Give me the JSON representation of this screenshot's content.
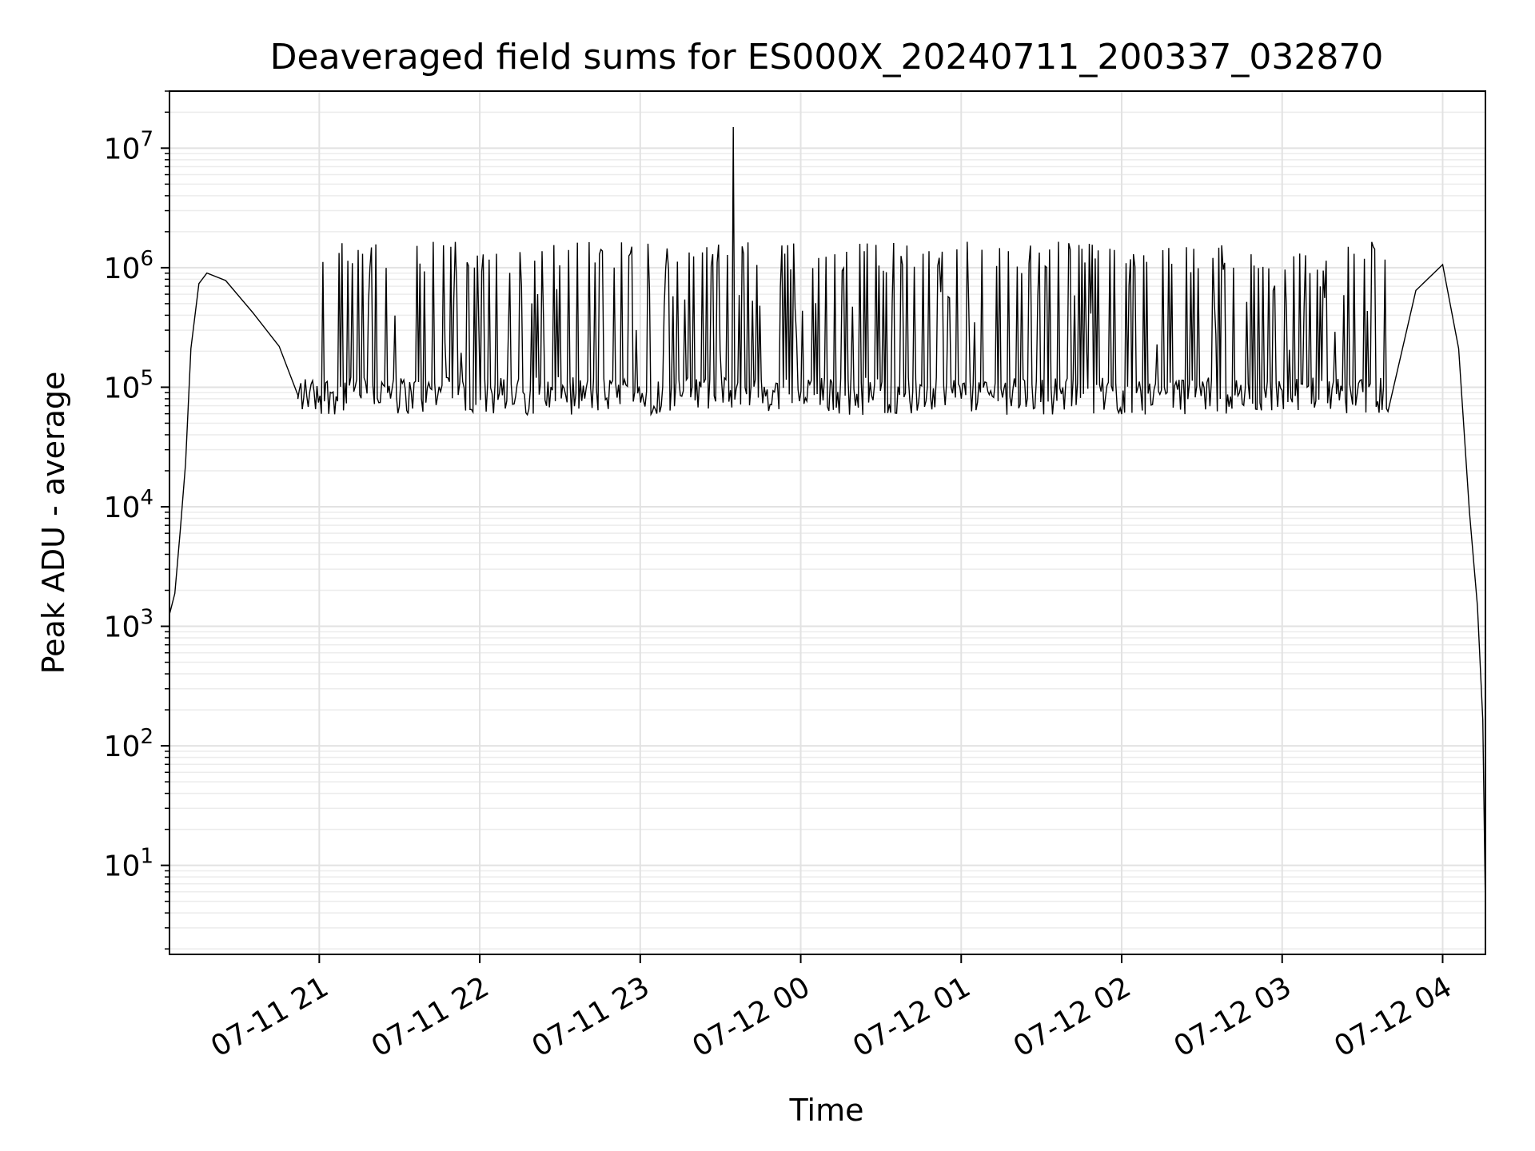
{
  "chart_data": {
    "type": "line",
    "title": "Deaveraged field sums for ES000X_20240711_200337_032870",
    "xlabel": "Time",
    "ylabel": "Peak ADU - average",
    "x_range": [
      "2024-07-11 20:04",
      "2024-07-12 04:16"
    ],
    "ylim": [
      1.8,
      30000000
    ],
    "yscale": "log",
    "grid": true,
    "legend": "none",
    "x_ticks": [
      "07-11 21",
      "07-11 22",
      "07-11 23",
      "07-12 00",
      "07-12 01",
      "07-12 02",
      "07-12 03",
      "07-12 04"
    ],
    "y_ticks": [
      {
        "base": "10",
        "exp": "1"
      },
      {
        "base": "10",
        "exp": "2"
      },
      {
        "base": "10",
        "exp": "3"
      },
      {
        "base": "10",
        "exp": "4"
      },
      {
        "base": "10",
        "exp": "5"
      },
      {
        "base": "10",
        "exp": "6"
      },
      {
        "base": "10",
        "exp": "7"
      }
    ],
    "series": [
      {
        "color": "#000000",
        "description_points": [
          {
            "x": "2024-07-11 20:04",
            "y": 1200
          },
          {
            "x": "2024-07-11 20:06",
            "y": 2000
          },
          {
            "x": "2024-07-11 20:08",
            "y": 6000
          },
          {
            "x": "2024-07-11 20:10",
            "y": 20000
          },
          {
            "x": "2024-07-11 20:12",
            "y": 200000
          },
          {
            "x": "2024-07-11 20:15",
            "y": 700000
          },
          {
            "x": "2024-07-11 20:18",
            "y": 1000000
          },
          {
            "x": "2024-07-11 20:25",
            "y": 700000
          },
          {
            "x": "2024-07-11 20:35",
            "y": 400000
          },
          {
            "x": "2024-07-11 20:45",
            "y": 200000
          },
          {
            "x": "2024-07-11 20:52",
            "y": 80000
          },
          {
            "x": "2024-07-11 23:35",
            "y": 15000000
          },
          {
            "x": "2024-07-12 03:30",
            "y": 80000
          },
          {
            "x": "2024-07-12 03:50",
            "y": 600000
          },
          {
            "x": "2024-07-12 04:00",
            "y": 1000000
          },
          {
            "x": "2024-07-12 04:06",
            "y": 200000
          },
          {
            "x": "2024-07-12 04:10",
            "y": 10000
          },
          {
            "x": "2024-07-12 04:13",
            "y": 1500
          },
          {
            "x": "2024-07-12 04:15",
            "y": 170
          },
          {
            "x": "2024-07-12 04:16",
            "y": 4
          }
        ],
        "noise_band": {
          "x_start": "2024-07-11 20:52",
          "x_end": "2024-07-12 03:40",
          "baseline_y": 90000,
          "spike_y": 1500000
        }
      }
    ]
  }
}
